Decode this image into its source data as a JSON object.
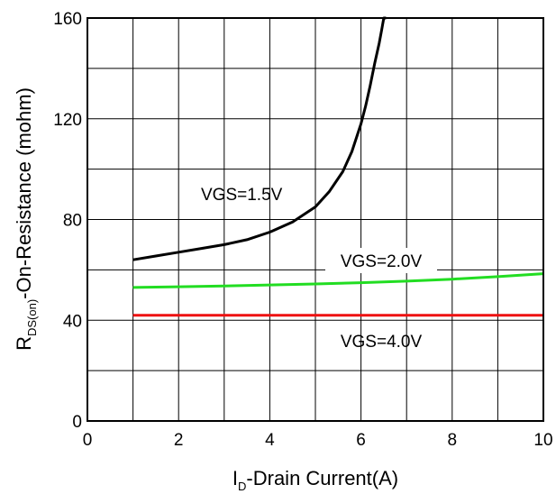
{
  "chart_data": {
    "type": "line",
    "title": "",
    "xlabel": {
      "main": "I",
      "sub": "D",
      "rest": "-Drain Current(A)"
    },
    "ylabel": {
      "main": "R",
      "sub": "DS(on)",
      "rest": "-On-Resistance (mohm)"
    },
    "xlim": [
      0,
      10
    ],
    "ylim": [
      0,
      160
    ],
    "xticks": [
      0,
      2,
      4,
      6,
      8,
      10
    ],
    "yticks": [
      0,
      40,
      80,
      120,
      160
    ],
    "x_gridlines": [
      1,
      2,
      3,
      4,
      5,
      6,
      7,
      8,
      9
    ],
    "y_gridlines": [
      20,
      40,
      60,
      80,
      100,
      120,
      140
    ],
    "grid": true,
    "legend": "none (series labelled inline)",
    "series": [
      {
        "name": "VGS=1.5V",
        "color": "#000000",
        "x": [
          1.0,
          1.5,
          2.0,
          2.5,
          3.0,
          3.5,
          4.0,
          4.5,
          5.0,
          5.3,
          5.6,
          5.8,
          6.0,
          6.1,
          6.2,
          6.3,
          6.4,
          6.45,
          6.5,
          6.55
        ],
        "y": [
          64,
          65.5,
          67,
          68.5,
          70,
          72,
          75,
          79,
          85,
          91,
          99,
          107,
          118,
          125,
          133,
          142,
          150,
          155,
          160,
          160
        ]
      },
      {
        "name": "VGS=2.0V",
        "color": "#22dd22",
        "x": [
          1,
          2,
          3,
          4,
          5,
          6,
          7,
          8,
          9,
          10
        ],
        "y": [
          53,
          53.3,
          53.6,
          54,
          54.4,
          54.9,
          55.5,
          56.3,
          57.3,
          58.5
        ]
      },
      {
        "name": "VGS=4.0V",
        "color": "#ee1111",
        "x": [
          1,
          2,
          3,
          4,
          5,
          6,
          7,
          8,
          9,
          10
        ],
        "y": [
          42,
          42,
          42,
          42,
          42,
          42,
          42,
          42,
          42,
          42
        ]
      }
    ]
  }
}
